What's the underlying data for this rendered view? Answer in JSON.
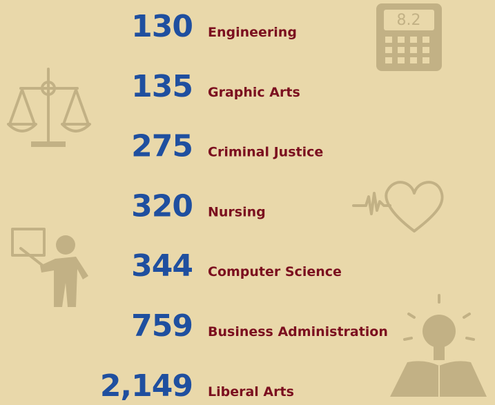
{
  "items": [
    {
      "value": "130",
      "label": "Engineering"
    },
    {
      "value": "135",
      "label": "Graphic Arts"
    },
    {
      "value": "275",
      "label": "Criminal Justice"
    },
    {
      "value": "320",
      "label": "Nursing"
    },
    {
      "value": "344",
      "label": "Computer Science"
    },
    {
      "value": "759",
      "label": "Business Administration"
    },
    {
      "value": "2,149",
      "label": "Liberal Arts"
    }
  ]
}
